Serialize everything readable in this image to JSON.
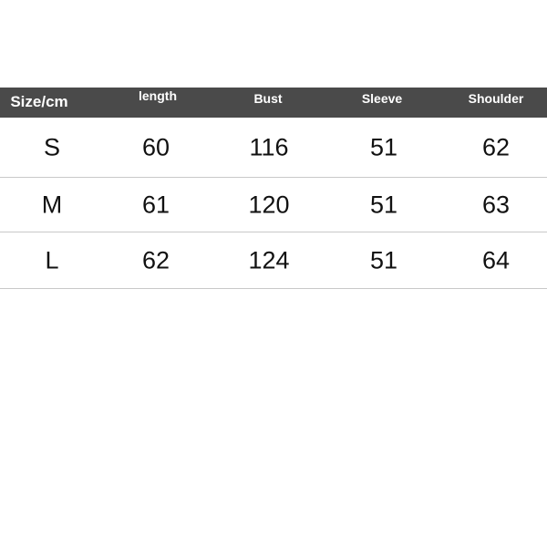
{
  "table": {
    "header_bg": "#4a4a4a",
    "headers": [
      "Size/cm",
      "length",
      "Bust",
      "Sleeve",
      "Shoulder"
    ],
    "rows": [
      [
        "S",
        "60",
        "116",
        "51",
        "62"
      ],
      [
        "M",
        "61",
        "120",
        "51",
        "63"
      ],
      [
        "L",
        "62",
        "124",
        "51",
        "64"
      ]
    ]
  }
}
